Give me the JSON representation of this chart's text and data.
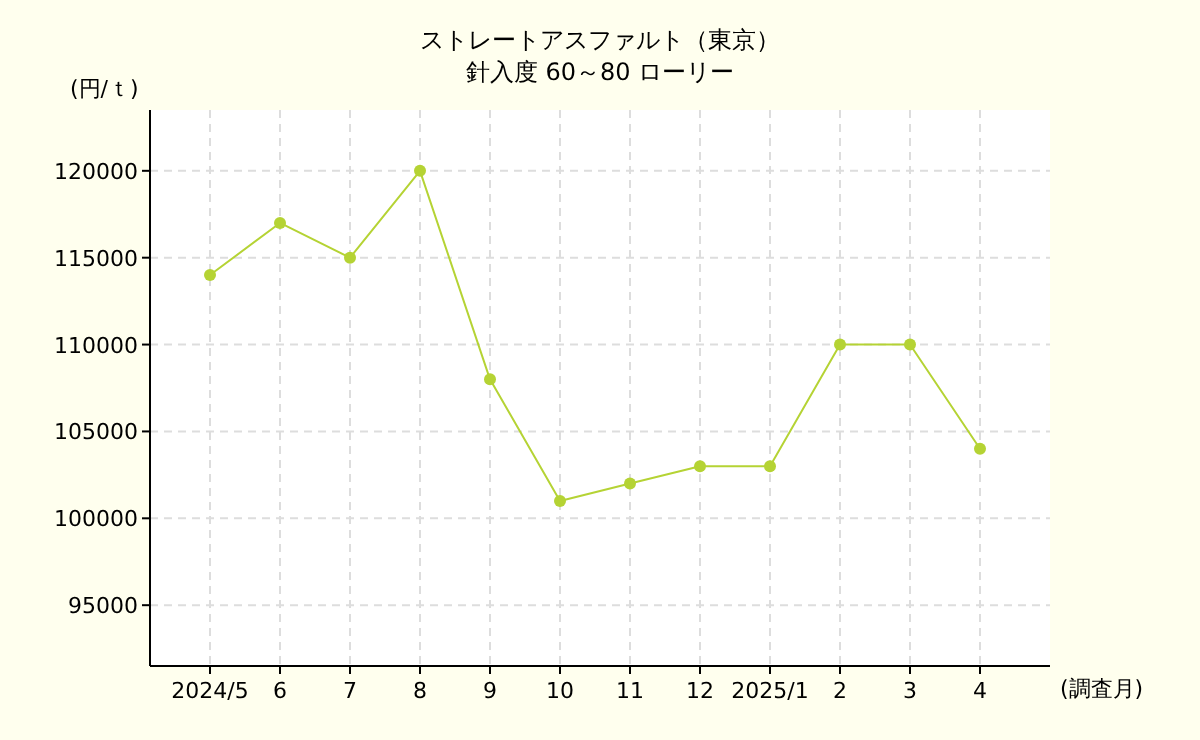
{
  "chart_data": {
    "type": "line",
    "title": "ストレートアスファルト（東京）",
    "subtitle": "針入度 60～80 ローリー",
    "xlabel": "(調査月)",
    "ylabel": "(円/ｔ)",
    "categories": [
      "2024/5",
      "6",
      "7",
      "8",
      "9",
      "10",
      "11",
      "12",
      "2025/1",
      "2",
      "3",
      "4"
    ],
    "series": [
      {
        "color": "#b5d334",
        "values": [
          114000,
          117000,
          115000,
          120000,
          108000,
          101000,
          102000,
          103000,
          103000,
          110000,
          110000,
          104000
        ]
      }
    ],
    "ylim": [
      91500,
      123500
    ],
    "yticks": [
      95000,
      100000,
      105000,
      110000,
      115000,
      120000
    ],
    "grid": true,
    "marker": "circle",
    "line_style": "solid"
  }
}
